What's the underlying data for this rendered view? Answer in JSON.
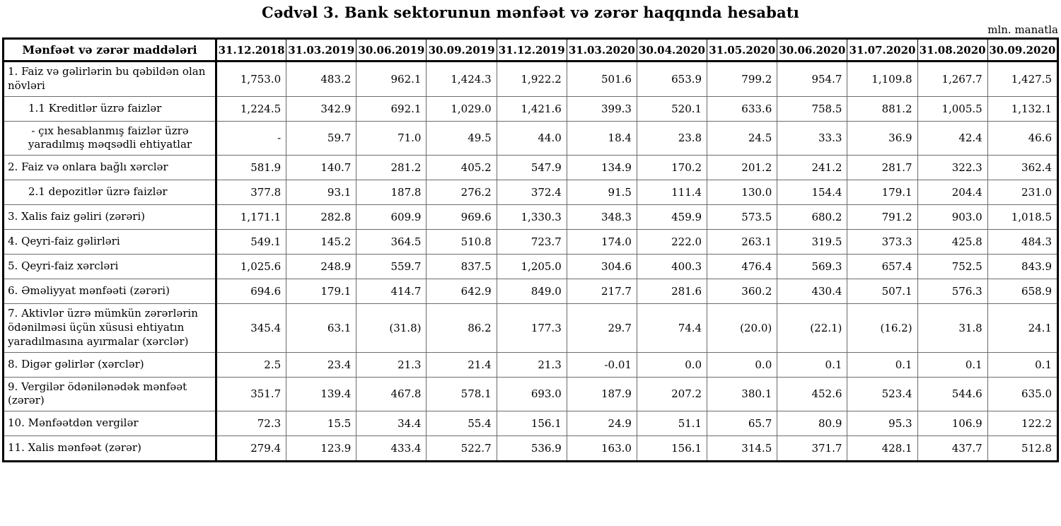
{
  "title": "Cədvəl 3. Bank sektorunun mənfəət və zərər haqqında hesabatı",
  "unit_note": "mln. manatla",
  "colors": {
    "text": "#000000",
    "background": "#ffffff",
    "border_strong": "#000000",
    "border_light": "#6b6b6b"
  },
  "table": {
    "header": {
      "label_column": "Mənfəət və zərər maddələri",
      "periods": [
        "31.12.2018",
        "31.03.2019",
        "30.06.2019",
        "30.09.2019",
        "31.12.2019",
        "31.03.2020",
        "30.04.2020",
        "31.05.2020",
        "30.06.2020",
        "31.07.2020",
        "31.08.2020",
        "30.09.2020"
      ]
    },
    "rows": [
      {
        "label": "1. Faiz və gəlirlərin bu qəbildən olan\nnövləri",
        "indent": "none",
        "values": [
          "1,753.0",
          "483.2",
          "962.1",
          "1,424.3",
          "1,922.2",
          "501.6",
          "653.9",
          "799.2",
          "954.7",
          "1,109.8",
          "1,267.7",
          "1,427.5"
        ]
      },
      {
        "label": "1.1 Kreditlər üzrə faizlər",
        "indent": "sub",
        "values": [
          "1,224.5",
          "342.9",
          "692.1",
          "1,029.0",
          "1,421.6",
          "399.3",
          "520.1",
          "633.6",
          "758.5",
          "881.2",
          "1,005.5",
          "1,132.1"
        ]
      },
      {
        "label": "-  çıx hesablanmış faizlər üzrə\nyaradılmış məqsədli ehtiyatlar",
        "indent": "center",
        "values": [
          "-",
          "59.7",
          "71.0",
          "49.5",
          "44.0",
          "18.4",
          "23.8",
          "24.5",
          "33.3",
          "36.9",
          "42.4",
          "46.6"
        ]
      },
      {
        "label": "2. Faiz və onlara bağlı xərclər",
        "indent": "none",
        "values": [
          "581.9",
          "140.7",
          "281.2",
          "405.2",
          "547.9",
          "134.9",
          "170.2",
          "201.2",
          "241.2",
          "281.7",
          "322.3",
          "362.4"
        ]
      },
      {
        "label": "2.1 depozitlər üzrə faizlər",
        "indent": "sub",
        "values": [
          "377.8",
          "93.1",
          "187.8",
          "276.2",
          "372.4",
          "91.5",
          "111.4",
          "130.0",
          "154.4",
          "179.1",
          "204.4",
          "231.0"
        ]
      },
      {
        "label": "3. Xalis faiz gəliri (zərəri)",
        "indent": "none",
        "values": [
          "1,171.1",
          "282.8",
          "609.9",
          "969.6",
          "1,330.3",
          "348.3",
          "459.9",
          "573.5",
          "680.2",
          "791.2",
          "903.0",
          "1,018.5"
        ]
      },
      {
        "label": "4. Qeyri-faiz gəlirləri",
        "indent": "none",
        "values": [
          "549.1",
          "145.2",
          "364.5",
          "510.8",
          "723.7",
          "174.0",
          "222.0",
          "263.1",
          "319.5",
          "373.3",
          "425.8",
          "484.3"
        ]
      },
      {
        "label": "5. Qeyri-faiz xərcləri",
        "indent": "none",
        "values": [
          "1,025.6",
          "248.9",
          "559.7",
          "837.5",
          "1,205.0",
          "304.6",
          "400.3",
          "476.4",
          "569.3",
          "657.4",
          "752.5",
          "843.9"
        ]
      },
      {
        "label": "6. Əməliyyat mənfəəti (zərəri)",
        "indent": "none",
        "values": [
          "694.6",
          "179.1",
          "414.7",
          "642.9",
          "849.0",
          "217.7",
          "281.6",
          "360.2",
          "430.4",
          "507.1",
          "576.3",
          "658.9"
        ]
      },
      {
        "label": "7. Aktivlər üzrə mümkün zərərlərin\nödənilməsi üçün xüsusi ehtiyatın\nyaradılmasına ayırmalar (xərclər)",
        "indent": "none",
        "values": [
          "345.4",
          "63.1",
          "(31.8)",
          "86.2",
          "177.3",
          "29.7",
          "74.4",
          "(20.0)",
          "(22.1)",
          "(16.2)",
          "31.8",
          "24.1"
        ]
      },
      {
        "label": "8. Digər gəlirlər (xərclər)",
        "indent": "none",
        "values": [
          "2.5",
          "23.4",
          "21.3",
          "21.4",
          "21.3",
          "-0.01",
          "0.0",
          "0.0",
          "0.1",
          "0.1",
          "0.1",
          "0.1"
        ]
      },
      {
        "label": "9. Vergilər ödənilənədək mənfəət\n(zərər)",
        "indent": "none",
        "values": [
          "351.7",
          "139.4",
          "467.8",
          "578.1",
          "693.0",
          "187.9",
          "207.2",
          "380.1",
          "452.6",
          "523.4",
          "544.6",
          "635.0"
        ]
      },
      {
        "label": "10. Mənfəətdən vergilər",
        "indent": "none",
        "values": [
          "72.3",
          "15.5",
          "34.4",
          "55.4",
          "156.1",
          "24.9",
          "51.1",
          "65.7",
          "80.9",
          "95.3",
          "106.9",
          "122.2"
        ]
      },
      {
        "label": "11. Xalis mənfəət (zərər)",
        "indent": "none",
        "values": [
          "279.4",
          "123.9",
          "433.4",
          "522.7",
          "536.9",
          "163.0",
          "156.1",
          "314.5",
          "371.7",
          "428.1",
          "437.7",
          "512.8"
        ]
      }
    ]
  }
}
